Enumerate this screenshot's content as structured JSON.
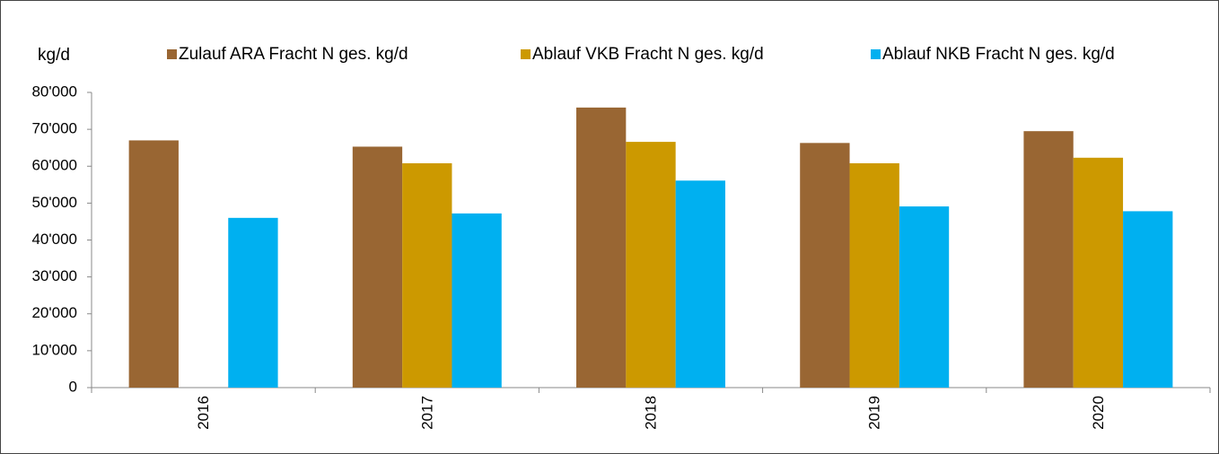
{
  "chart_data": {
    "type": "bar",
    "y_label": "kg/d",
    "categories": [
      "2016",
      "2017",
      "2018",
      "2019",
      "2020"
    ],
    "series": [
      {
        "name": "Zulauf ARA Fracht N ges. kg/d",
        "color": "#996633",
        "values": [
          67000,
          65300,
          75900,
          66300,
          69500
        ]
      },
      {
        "name": "Ablauf VKB Fracht N ges. kg/d",
        "color": "#cc9900",
        "values": [
          null,
          60800,
          66600,
          60800,
          62300
        ]
      },
      {
        "name": "Ablauf NKB Fracht N ges. kg/d",
        "color": "#00b0f0",
        "values": [
          46000,
          47200,
          56100,
          49100,
          47800
        ]
      }
    ],
    "ylim": [
      0,
      80000
    ],
    "yticks": [
      0,
      {
        "value": 10000,
        "label": "10'000"
      },
      {
        "value": 20000,
        "label": "20'000"
      },
      {
        "value": 30000,
        "label": "30'000"
      },
      {
        "value": 40000,
        "label": "40'000"
      },
      {
        "value": 50000,
        "label": "50'000"
      },
      {
        "value": 60000,
        "label": "60'000"
      },
      {
        "value": 70000,
        "label": "70'000"
      },
      {
        "value": 80000,
        "label": "80'000"
      }
    ],
    "grid": false,
    "legend": "top"
  }
}
